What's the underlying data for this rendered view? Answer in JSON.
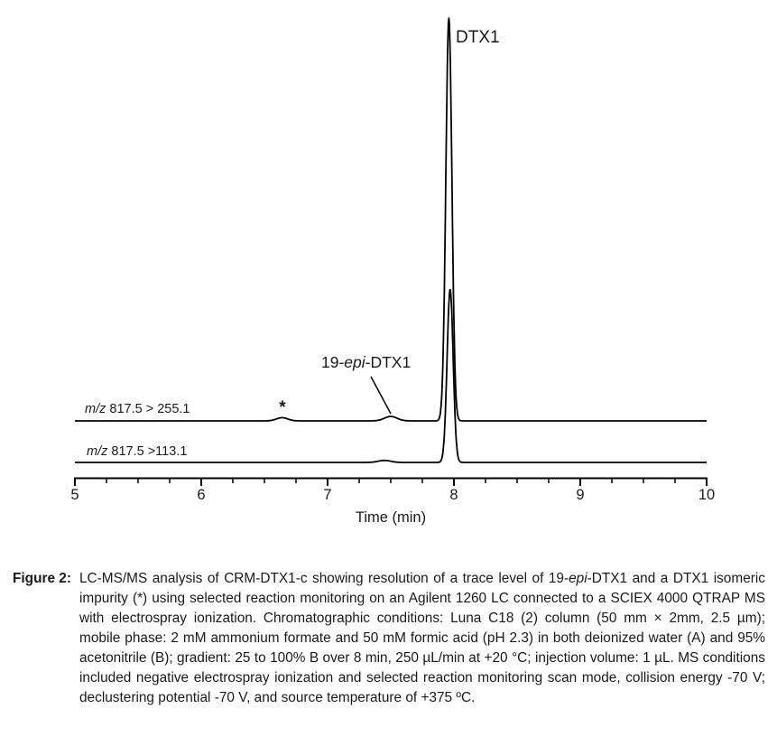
{
  "annotations": {
    "dtx1_label": "DTX1",
    "epi_label": {
      "pre": "19-",
      "italic": "epi",
      "post": "-DTX1"
    },
    "impurity_marker": "*"
  },
  "chart_data": {
    "type": "line",
    "title": "",
    "xlabel": "Time (min)",
    "ylabel": "",
    "xlim": [
      5,
      10
    ],
    "x_major_ticks": [
      5,
      6,
      7,
      8,
      9,
      10
    ],
    "x_minor_tick_step": 0.25,
    "grid": false,
    "legend_position": "none",
    "colors": {
      "trace": "#000000",
      "background": "#ffffff",
      "text": "#1a1a1a"
    },
    "series": [
      {
        "name_italic": "m/z",
        "name_rest": " 817.5 > 255.1",
        "description": "upper SRM trace",
        "peaks": [
          {
            "rt_min": 6.64,
            "rel_height": 0.008,
            "sigma_min": 0.045,
            "annotation": "*"
          },
          {
            "rt_min": 7.5,
            "rel_height": 0.011,
            "sigma_min": 0.05,
            "annotation": "19-epi-DTX1"
          },
          {
            "rt_min": 7.96,
            "rel_height": 1.0,
            "sigma_min": 0.024,
            "annotation": "DTX1"
          }
        ]
      },
      {
        "name_italic": "m/z",
        "name_rest": " 817.5 >113.1",
        "description": "lower SRM trace",
        "peaks": [
          {
            "rt_min": 7.45,
            "rel_height": 0.005,
            "sigma_min": 0.05,
            "annotation": ""
          },
          {
            "rt_min": 7.97,
            "rel_height": 0.43,
            "sigma_min": 0.024,
            "annotation": ""
          }
        ]
      }
    ]
  },
  "caption": {
    "label": "Figure 2:",
    "pre": "LC-MS/MS analysis of CRM-DTX1-c showing resolution of a trace level of 19-",
    "italic": "epi",
    "post": "-DTX1 and a DTX1 isomeric impurity (*) using selected reaction monitoring on an Agilent 1260 LC connected to a SCIEX 4000 QTRAP MS with electrospray ionization. Chromatographic conditions: Luna C18 (2) column (50 mm × 2mm, 2.5 µm); mobile phase: 2 mM ammonium formate and 50 mM formic acid (pH 2.3) in both deionized water (A) and 95% acetonitrile (B); gradient: 25 to 100% B over 8 min, 250 µL/min at +20 °C; injection volume: 1 µL. MS conditions included negative electrospray ionization and selected reaction monitoring scan mode, collision energy -70 V; declustering potential -70 V, and source temperature of +375 ºC."
  }
}
